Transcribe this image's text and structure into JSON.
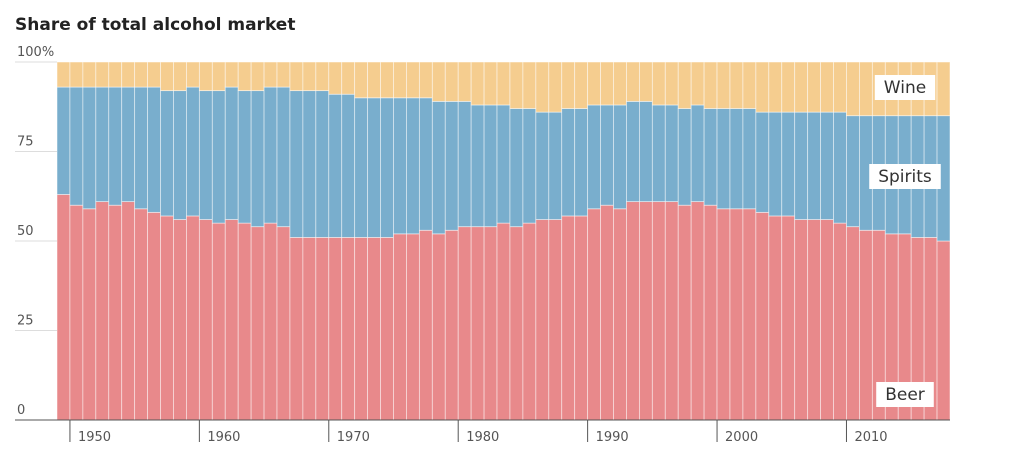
{
  "chart_data": {
    "type": "stacked_bar",
    "title": "Share of total alcohol market",
    "x": [
      1949,
      1950,
      1951,
      1952,
      1953,
      1954,
      1955,
      1956,
      1957,
      1958,
      1959,
      1960,
      1961,
      1962,
      1963,
      1964,
      1965,
      1966,
      1967,
      1968,
      1969,
      1970,
      1971,
      1972,
      1973,
      1974,
      1975,
      1976,
      1977,
      1978,
      1979,
      1980,
      1981,
      1982,
      1983,
      1984,
      1985,
      1986,
      1987,
      1988,
      1989,
      1990,
      1991,
      1992,
      1993,
      1994,
      1995,
      1996,
      1997,
      1998,
      1999,
      2000,
      2001,
      2002,
      2003,
      2004,
      2005,
      2006,
      2007,
      2008,
      2009,
      2010,
      2011,
      2012,
      2013,
      2014,
      2015,
      2016,
      2017
    ],
    "xlim": [
      1949,
      2018
    ],
    "xticks": [
      1950,
      1960,
      1970,
      1980,
      1990,
      2000,
      2010
    ],
    "ylim": [
      0,
      100
    ],
    "yticks": [
      0,
      25,
      50,
      75,
      {
        "value": 100,
        "label": "100%"
      }
    ],
    "grid": true,
    "series": [
      {
        "name": "Beer",
        "color": "#e8898b",
        "values": [
          63,
          60,
          59,
          61,
          60,
          61,
          59,
          58,
          57,
          56,
          57,
          56,
          55,
          56,
          55,
          54,
          55,
          54,
          51,
          51,
          51,
          51,
          51,
          51,
          51,
          51,
          52,
          52,
          53,
          52,
          53,
          54,
          54,
          54,
          55,
          54,
          55,
          56,
          56,
          57,
          57,
          59,
          60,
          59,
          61,
          61,
          61,
          61,
          60,
          61,
          60,
          59,
          59,
          59,
          58,
          57,
          57,
          56,
          56,
          56,
          55,
          54,
          53,
          53,
          52,
          52,
          51,
          51,
          50
        ]
      },
      {
        "name": "Spirits",
        "color": "#79aecd",
        "values": [
          30,
          33,
          34,
          32,
          33,
          32,
          34,
          35,
          35,
          36,
          36,
          36,
          37,
          37,
          37,
          38,
          38,
          39,
          41,
          41,
          41,
          40,
          40,
          39,
          39,
          39,
          38,
          38,
          37,
          37,
          36,
          35,
          34,
          34,
          33,
          33,
          32,
          30,
          30,
          30,
          30,
          29,
          28,
          29,
          28,
          28,
          27,
          27,
          27,
          27,
          27,
          28,
          28,
          28,
          28,
          29,
          29,
          30,
          30,
          30,
          31,
          31,
          32,
          32,
          33,
          33,
          34,
          34,
          35
        ]
      },
      {
        "name": "Wine",
        "color": "#f5cd8f",
        "values": [
          7,
          7,
          7,
          7,
          7,
          7,
          7,
          7,
          8,
          8,
          7,
          8,
          8,
          7,
          8,
          8,
          7,
          7,
          8,
          8,
          8,
          9,
          9,
          10,
          10,
          10,
          10,
          10,
          10,
          11,
          11,
          11,
          12,
          12,
          12,
          13,
          13,
          14,
          14,
          13,
          13,
          12,
          12,
          12,
          11,
          11,
          12,
          12,
          13,
          12,
          13,
          13,
          13,
          13,
          14,
          14,
          14,
          14,
          14,
          14,
          14,
          15,
          15,
          15,
          15,
          15,
          15,
          15,
          15
        ]
      }
    ]
  }
}
